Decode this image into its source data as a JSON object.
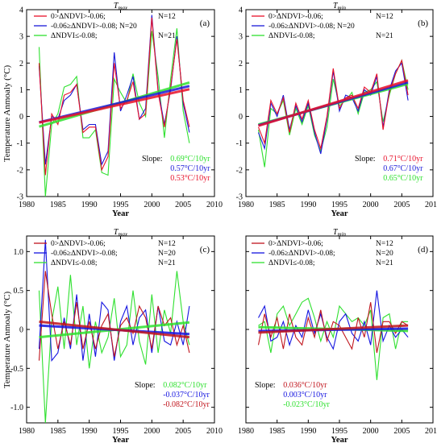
{
  "figure": {
    "ylabel_top": "Temperature Anmoaly (°C)",
    "ylabel_bottom": "Temperature Anmoaly  (°C)"
  },
  "chart_data": [
    {
      "panel": "(a)",
      "type": "line",
      "title": "T",
      "title_sub": "max",
      "xlabel": "Year",
      "xlim": [
        1980,
        2010
      ],
      "ylim": [
        -3,
        4
      ],
      "xticks": [
        1980,
        1985,
        1990,
        1995,
        2000,
        2005,
        2010
      ],
      "yticks": [
        -3,
        -2,
        -1,
        0,
        1,
        2,
        3,
        4
      ],
      "x": [
        1982,
        1983,
        1984,
        1985,
        1986,
        1987,
        1988,
        1989,
        1990,
        1991,
        1992,
        1993,
        1994,
        1995,
        1996,
        1997,
        1998,
        1999,
        2000,
        2001,
        2002,
        2003,
        2004,
        2005,
        2006
      ],
      "legend_placement": "top-left",
      "slope_label": "Slope:",
      "series": [
        {
          "legend": "0>ΔNDVI>-0.06;",
          "n": "N=12",
          "color": "#e8102a",
          "values": [
            2.0,
            -2.2,
            0.1,
            -0.3,
            0.8,
            0.9,
            1.2,
            -0.6,
            -0.4,
            -0.4,
            -2.0,
            -1.5,
            2.0,
            0.3,
            0.6,
            1.3,
            -0.1,
            0.1,
            3.7,
            0.9,
            -0.4,
            1.1,
            2.9,
            0.6,
            -0.4
          ],
          "trend": [
            -0.23,
            1.02
          ],
          "slope": "0.53°C/10yr"
        },
        {
          "legend": "-0.06≥ΔNDVI>-0.08; N=20",
          "n": "",
          "color": "#1a1ad8",
          "values": [
            1.9,
            -1.8,
            0.0,
            -0.1,
            0.6,
            0.8,
            1.2,
            -0.5,
            -0.3,
            -0.3,
            -1.8,
            -1.3,
            2.4,
            0.2,
            0.8,
            1.5,
            -0.1,
            0.3,
            3.8,
            1.0,
            -0.3,
            1.0,
            3.0,
            0.5,
            -0.6
          ],
          "trend": [
            -0.22,
            1.14
          ],
          "slope": "0.57°C/10yr"
        },
        {
          "legend": "ΔNDVI≤-0.08;",
          "n": "N=21",
          "color": "#2fe02f",
          "values": [
            2.6,
            -3.0,
            -0.3,
            0.1,
            1.1,
            1.2,
            1.5,
            -0.8,
            -0.8,
            -0.5,
            -2.1,
            -2.2,
            1.4,
            0.9,
            0.5,
            1.6,
            0.5,
            0.0,
            3.2,
            1.5,
            -0.8,
            1.4,
            3.3,
            0.2,
            -1.0
          ],
          "trend": [
            -0.38,
            1.27
          ],
          "slope": "0.69°C/10yr"
        }
      ],
      "slope_order": [
        2,
        1,
        0
      ]
    },
    {
      "panel": "(b)",
      "type": "line",
      "title": "T",
      "title_sub": "min",
      "xlabel": "Year",
      "xlim": [
        1980,
        2010
      ],
      "ylim": [
        -3,
        4
      ],
      "xticks": [
        1980,
        1985,
        1990,
        1995,
        2000,
        2005,
        2010
      ],
      "yticks": [
        -3,
        -2,
        -1,
        0,
        1,
        2,
        3,
        4
      ],
      "x": [
        1982,
        1983,
        1984,
        1985,
        1986,
        1987,
        1988,
        1989,
        1990,
        1991,
        1992,
        1993,
        1994,
        1995,
        1996,
        1997,
        1998,
        1999,
        2000,
        2001,
        2002,
        2003,
        2004,
        2005,
        2006
      ],
      "legend_placement": "top-left",
      "slope_label": "Slope:",
      "series": [
        {
          "legend": "0>ΔNDVI>-0.06;",
          "n": "N=12",
          "color": "#e8102a",
          "values": [
            -0.4,
            -1.0,
            0.6,
            0.1,
            0.7,
            -0.6,
            0.5,
            -0.1,
            0.6,
            -0.5,
            -1.2,
            0.0,
            1.8,
            0.3,
            0.7,
            0.8,
            0.3,
            1.1,
            0.9,
            1.6,
            -0.5,
            0.9,
            1.6,
            2.1,
            0.8
          ],
          "trend": [
            -0.35,
            1.35
          ],
          "slope": "0.71°C/10yr"
        },
        {
          "legend": "-0.06≥ΔNDVI>-0.08; N=20",
          "n": "",
          "color": "#1a1ad8",
          "values": [
            -0.6,
            -1.2,
            0.5,
            0.0,
            0.8,
            -0.5,
            0.4,
            -0.2,
            0.5,
            -0.6,
            -1.4,
            -0.1,
            1.7,
            0.2,
            0.8,
            0.7,
            0.2,
            1.0,
            0.8,
            1.5,
            -0.4,
            1.0,
            1.7,
            2.0,
            0.6
          ],
          "trend": [
            -0.33,
            1.28
          ],
          "slope": "0.67°C/10yr"
        },
        {
          "legend": "ΔNDVI≤-0.08;",
          "n": "N=21",
          "color": "#2fe02f",
          "values": [
            -0.5,
            -1.9,
            0.3,
            0.1,
            0.6,
            -0.7,
            0.3,
            -0.3,
            0.4,
            -0.7,
            -1.3,
            -0.4,
            1.4,
            0.4,
            0.6,
            0.9,
            0.1,
            0.9,
            1.0,
            1.3,
            -0.2,
            0.8,
            1.6,
            2.1,
            1.0
          ],
          "trend": [
            -0.3,
            1.22
          ],
          "slope": "0.65°C/10yr"
        }
      ],
      "slope_order": [
        0,
        1,
        2
      ]
    },
    {
      "panel": "(c)",
      "type": "line",
      "title": "T",
      "title_sub": "max",
      "xlabel": "Year",
      "xlim": [
        1980,
        2010
      ],
      "ylim": [
        -1.2,
        1.2
      ],
      "xticks": [
        1980,
        1985,
        1990,
        1995,
        2000,
        2005,
        2010
      ],
      "yticks": [
        -1.0,
        -0.5,
        0.0,
        0.5,
        1.0
      ],
      "ytick_labels": [
        "-1.0",
        "-0.5",
        "0",
        "0.5",
        "1.0"
      ],
      "x": [
        1982,
        1983,
        1984,
        1985,
        1986,
        1987,
        1988,
        1989,
        1990,
        1991,
        1992,
        1993,
        1994,
        1995,
        1996,
        1997,
        1998,
        1999,
        2000,
        2001,
        2002,
        2003,
        2004,
        2005,
        2006
      ],
      "legend_placement": "top-left",
      "slope_label": "Slope:",
      "series": [
        {
          "legend": "0>ΔNDVI>-0.06;",
          "n": "N=12",
          "color": "#c0141c",
          "values": [
            -0.4,
            0.75,
            0.2,
            -0.25,
            0.1,
            -0.2,
            0.35,
            -0.25,
            0.1,
            -0.25,
            0.05,
            0.2,
            -0.35,
            0.05,
            0.15,
            -0.05,
            0.3,
            0.15,
            -0.25,
            0.3,
            0.05,
            0.15,
            -0.2,
            0.05,
            -0.3
          ],
          "trend": [
            0.1,
            -0.1
          ],
          "slope": "-0.082°C/10yr"
        },
        {
          "legend": "-0.06≥ΔNDVI>-0.08;",
          "n": "N=20",
          "color": "#1414e0",
          "values": [
            -0.25,
            1.15,
            -0.4,
            -0.3,
            0.15,
            -0.25,
            0.45,
            -0.4,
            0.2,
            -0.35,
            0.35,
            0.25,
            -0.4,
            0.1,
            0.3,
            -0.2,
            0.15,
            0.25,
            -0.3,
            0.3,
            -0.15,
            -0.2,
            0.1,
            -0.2,
            0.3
          ],
          "trend": [
            0.05,
            -0.06
          ],
          "slope": "-0.037°C/10yr"
        },
        {
          "legend": "ΔNDVI≤-0.08;",
          "n": "N=21",
          "color": "#2fe02f",
          "values": [
            0.5,
            -1.2,
            0.1,
            0.55,
            -0.25,
            0.7,
            -0.2,
            0.3,
            -0.5,
            0.1,
            -0.3,
            -0.1,
            0.4,
            -0.35,
            -0.2,
            0.5,
            -0.15,
            -0.45,
            0.45,
            -0.3,
            0.25,
            -0.05,
            0.75,
            0.1,
            -0.2
          ],
          "trend": [
            -0.1,
            0.09
          ],
          "slope": "0.082°C/10yr"
        }
      ],
      "slope_order": [
        2,
        1,
        0
      ]
    },
    {
      "panel": "(d)",
      "type": "line",
      "title": "T",
      "title_sub": "min",
      "xlabel": "Year",
      "xlim": [
        1980,
        2010
      ],
      "ylim": [
        -1.2,
        1.2
      ],
      "xticks": [
        1980,
        1985,
        1990,
        1995,
        2000,
        2005,
        2010
      ],
      "yticks": [
        -1.0,
        -0.5,
        0.0,
        0.5,
        1.0
      ],
      "ytick_labels": [
        "",
        "",
        "",
        "",
        ""
      ],
      "x": [
        1982,
        1983,
        1984,
        1985,
        1986,
        1987,
        1988,
        1989,
        1990,
        1991,
        1992,
        1993,
        1994,
        1995,
        1996,
        1997,
        1998,
        1999,
        2000,
        2001,
        2002,
        2003,
        2004,
        2005,
        2006
      ],
      "legend_placement": "top-left",
      "slope_label": "Slope:",
      "series": [
        {
          "legend": "0>ΔNDVI>-0.06;",
          "n": "N=12",
          "color": "#c0141c",
          "values": [
            -0.2,
            0.2,
            -0.1,
            0.15,
            -0.25,
            0.2,
            -0.1,
            -0.2,
            0.15,
            -0.1,
            0.25,
            -0.15,
            0.1,
            0.05,
            -0.1,
            -0.25,
            0.15,
            -0.1,
            0.35,
            -0.3,
            0.1,
            0.1,
            -0.05,
            0.1,
            0.05
          ],
          "trend": [
            -0.04,
            0.05
          ],
          "slope": "0.036°C/10yr"
        },
        {
          "legend": "-0.06≥ΔNDVI>-0.08;",
          "n": "N=20",
          "color": "#1414e0",
          "values": [
            0.15,
            0.3,
            -0.15,
            -0.1,
            0.1,
            -0.2,
            0.05,
            -0.1,
            0.25,
            -0.05,
            0.2,
            -0.1,
            -0.25,
            0.1,
            0.2,
            -0.05,
            -0.15,
            0.1,
            -0.2,
            0.5,
            -0.15,
            0.05,
            -0.1,
            0.0,
            -0.1
          ],
          "trend": [
            -0.02,
            0.01
          ],
          "slope": "0.003°C/10yr"
        },
        {
          "legend": "ΔNDVI≤-0.08;",
          "n": "N=21",
          "color": "#2fe02f",
          "values": [
            0.05,
            0.1,
            -0.3,
            0.2,
            0.3,
            0.05,
            0.2,
            0.35,
            0.4,
            0.15,
            -0.15,
            0.1,
            -0.1,
            0.3,
            0.2,
            0.1,
            0.15,
            0.05,
            0.25,
            -0.65,
            0.15,
            0.2,
            -0.25,
            0.1,
            0.1
          ],
          "trend": [
            0.03,
            -0.02
          ],
          "slope": "-0.023°C/10yr"
        }
      ],
      "slope_order": [
        0,
        1,
        2
      ]
    }
  ]
}
